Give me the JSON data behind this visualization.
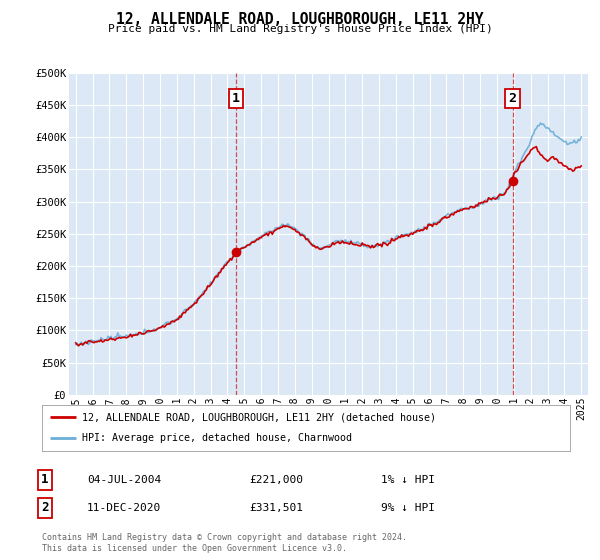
{
  "title": "12, ALLENDALE ROAD, LOUGHBOROUGH, LE11 2HY",
  "subtitle": "Price paid vs. HM Land Registry's House Price Index (HPI)",
  "legend_line1": "12, ALLENDALE ROAD, LOUGHBOROUGH, LE11 2HY (detached house)",
  "legend_line2": "HPI: Average price, detached house, Charnwood",
  "annotation1_date": "04-JUL-2004",
  "annotation1_price": "£221,000",
  "annotation1_hpi": "1% ↓ HPI",
  "annotation2_date": "11-DEC-2020",
  "annotation2_price": "£331,501",
  "annotation2_hpi": "9% ↓ HPI",
  "footer1": "Contains HM Land Registry data © Crown copyright and database right 2024.",
  "footer2": "This data is licensed under the Open Government Licence v3.0.",
  "hpi_color": "#6baed6",
  "price_color": "#cc0000",
  "dot_color": "#cc0000",
  "plot_bg_color": "#dce8f5",
  "grid_color": "#ffffff",
  "vline_color": "#cc3333",
  "ylim": [
    0,
    500000
  ],
  "yticks": [
    0,
    50000,
    100000,
    150000,
    200000,
    250000,
    300000,
    350000,
    400000,
    450000,
    500000
  ],
  "ytick_labels": [
    "£0",
    "£50K",
    "£100K",
    "£150K",
    "£200K",
    "£250K",
    "£300K",
    "£350K",
    "£400K",
    "£450K",
    "£500K"
  ],
  "xtick_years": [
    1995,
    1996,
    1997,
    1998,
    1999,
    2000,
    2001,
    2002,
    2003,
    2004,
    2005,
    2006,
    2007,
    2008,
    2009,
    2010,
    2011,
    2012,
    2013,
    2014,
    2015,
    2016,
    2017,
    2018,
    2019,
    2020,
    2021,
    2022,
    2023,
    2024,
    2025
  ],
  "point1_x": 2004.5,
  "point1_y": 221000,
  "point2_x": 2020.92,
  "point2_y": 331501,
  "xlim_left": 1994.6,
  "xlim_right": 2025.4
}
